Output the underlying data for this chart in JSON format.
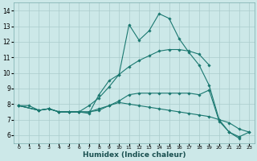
{
  "xlabel": "Humidex (Indice chaleur)",
  "ylabel": "",
  "background_color": "#cce8e8",
  "grid_color": "#aacccc",
  "line_color": "#1a7870",
  "xlim": [
    -0.5,
    23.5
  ],
  "ylim": [
    5.5,
    14.5
  ],
  "xticks": [
    0,
    1,
    2,
    3,
    4,
    5,
    6,
    7,
    8,
    9,
    10,
    11,
    12,
    13,
    14,
    15,
    16,
    17,
    18,
    19,
    20,
    21,
    22,
    23
  ],
  "yticks": [
    6,
    7,
    8,
    9,
    10,
    11,
    12,
    13,
    14
  ],
  "lines": [
    {
      "x": [
        0,
        1,
        2,
        3,
        4,
        5,
        6,
        7,
        8,
        9,
        10,
        11,
        12,
        13,
        14,
        15,
        16,
        17,
        18,
        19,
        20,
        21,
        22
      ],
      "y": [
        7.9,
        7.9,
        7.6,
        7.7,
        7.5,
        7.5,
        7.5,
        7.4,
        8.6,
        9.5,
        9.9,
        13.1,
        12.1,
        12.7,
        13.8,
        13.5,
        12.2,
        11.3,
        10.5,
        9.2,
        7.0,
        6.2,
        5.8
      ]
    },
    {
      "x": [
        0,
        2,
        3,
        4,
        5,
        6,
        7,
        8,
        9,
        10,
        11,
        12,
        13,
        14,
        15,
        16,
        17,
        18,
        19
      ],
      "y": [
        7.9,
        7.6,
        7.7,
        7.5,
        7.5,
        7.5,
        7.9,
        8.4,
        9.1,
        9.9,
        10.4,
        10.8,
        11.1,
        11.4,
        11.5,
        11.5,
        11.4,
        11.2,
        10.5
      ]
    },
    {
      "x": [
        0,
        2,
        3,
        4,
        5,
        6,
        7,
        8,
        9,
        10,
        11,
        12,
        13,
        14,
        15,
        16,
        17,
        18,
        19,
        20,
        21,
        22,
        23
      ],
      "y": [
        7.9,
        7.6,
        7.7,
        7.5,
        7.5,
        7.5,
        7.5,
        7.7,
        7.9,
        8.1,
        8.0,
        7.9,
        7.8,
        7.7,
        7.6,
        7.5,
        7.4,
        7.3,
        7.2,
        7.0,
        6.8,
        6.4,
        6.2
      ]
    },
    {
      "x": [
        0,
        2,
        3,
        4,
        5,
        6,
        7,
        8,
        9,
        10,
        11,
        12,
        13,
        14,
        15,
        16,
        17,
        18,
        19,
        20,
        21,
        22,
        23
      ],
      "y": [
        7.9,
        7.6,
        7.7,
        7.5,
        7.5,
        7.5,
        7.5,
        7.6,
        7.9,
        8.2,
        8.6,
        8.7,
        8.7,
        8.7,
        8.7,
        8.7,
        8.7,
        8.6,
        8.9,
        6.9,
        6.2,
        5.9,
        6.2
      ]
    }
  ]
}
